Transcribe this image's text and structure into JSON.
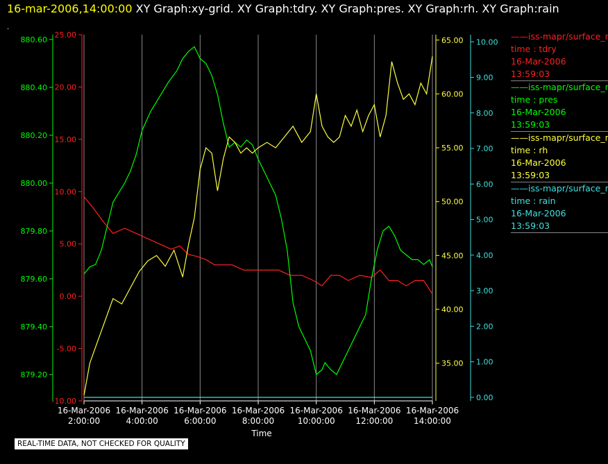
{
  "header": {
    "timestamp": "16-mar-2006,14:00:00",
    "graphs": "XY Graph:xy-grid.  XY Graph:tdry.  XY Graph:pres.  XY Graph:rh.  XY Graph:rain",
    "dot": "."
  },
  "notice": "REAL-TIME DATA, NOT CHECKED FOR QUALITY",
  "legend": [
    {
      "source": "——iss-mapr/surface_m",
      "field": "time : tdry",
      "date": "16-Mar-2006",
      "time": "13:59:03",
      "color": "#ff2020"
    },
    {
      "source": "——iss-mapr/surface_m",
      "field": "time : pres",
      "date": "16-Mar-2006",
      "time": "13:59:03",
      "color": "#00ff00"
    },
    {
      "source": "——iss-mapr/surface_m",
      "field": "time : rh",
      "date": "16-Mar-2006",
      "time": "13:59:03",
      "color": "#ffff40"
    },
    {
      "source": "——iss-mapr/surface_m",
      "field": "time : rain",
      "date": "16-Mar-2006",
      "time": "13:59:03",
      "color": "#40e0e0"
    }
  ],
  "chart_data": {
    "type": "line",
    "xlabel": "Time",
    "x_ticks": [
      [
        "16-Mar-2006",
        "2:00:00"
      ],
      [
        "16-Mar-2006",
        "4:00:00"
      ],
      [
        "16-Mar-2006",
        "6:00:00"
      ],
      [
        "16-Mar-2006",
        "8:00:00"
      ],
      [
        "16-Mar-2006",
        "10:00:00"
      ],
      [
        "16-Mar-2006",
        "12:00:00"
      ],
      [
        "16-Mar-2006",
        "14:00:00"
      ]
    ],
    "x_hours": [
      2,
      4,
      6,
      8,
      10,
      12,
      14
    ],
    "xlim": [
      2,
      14
    ],
    "grid": true,
    "axes": {
      "tdry": {
        "ticks": [
          "25.00",
          "20.00",
          "15.00",
          "10.00",
          "5.00",
          "0.00",
          "-5.00",
          "-10.00"
        ],
        "ylim": [
          -10,
          25
        ],
        "color": "#ff2020"
      },
      "pres": {
        "ticks": [
          "880.60",
          "880.40",
          "880.20",
          "880.00",
          "879.80",
          "879.60",
          "879.40",
          "879.20"
        ],
        "ylim": [
          879.09,
          880.62
        ],
        "color": "#00ff00"
      },
      "rh": {
        "ticks": [
          "65.00",
          "60.00",
          "55.00",
          "50.00",
          "45.00",
          "40.00",
          "35.00"
        ],
        "ylim": [
          31.5,
          65.5
        ],
        "color": "#ffff40"
      },
      "rain": {
        "ticks": [
          "10.00",
          "9.00",
          "8.00",
          "7.00",
          "6.00",
          "5.00",
          "4.00",
          "3.00",
          "2.00",
          "1.00",
          "0.00"
        ],
        "ylim": [
          -0.1,
          10.2
        ],
        "color": "#40e0e0"
      }
    },
    "series": [
      {
        "name": "tdry",
        "axis": "tdry",
        "color": "#ff2020",
        "x": [
          2.0,
          2.3,
          2.7,
          3.0,
          3.4,
          3.8,
          4.2,
          4.6,
          5.0,
          5.3,
          5.6,
          5.9,
          6.2,
          6.5,
          6.8,
          7.1,
          7.5,
          7.9,
          8.3,
          8.7,
          9.1,
          9.5,
          9.9,
          10.2,
          10.5,
          10.8,
          11.1,
          11.5,
          11.9,
          12.2,
          12.5,
          12.8,
          13.1,
          13.4,
          13.7,
          14.0
        ],
        "y": [
          9.5,
          8.5,
          7.0,
          6.0,
          6.5,
          6.0,
          5.5,
          5.0,
          4.5,
          4.8,
          4.0,
          3.8,
          3.5,
          3.0,
          3.0,
          3.0,
          2.5,
          2.5,
          2.5,
          2.5,
          2.0,
          2.0,
          1.5,
          1.0,
          2.0,
          2.0,
          1.5,
          2.0,
          1.8,
          2.5,
          1.5,
          1.5,
          1.0,
          1.5,
          1.5,
          0.2
        ]
      },
      {
        "name": "pres",
        "axis": "pres",
        "color": "#00ff00",
        "x": [
          2.0,
          2.2,
          2.4,
          2.6,
          2.8,
          3.0,
          3.2,
          3.4,
          3.6,
          3.8,
          4.0,
          4.3,
          4.6,
          4.9,
          5.2,
          5.4,
          5.6,
          5.8,
          6.0,
          6.2,
          6.4,
          6.6,
          6.8,
          7.0,
          7.2,
          7.4,
          7.6,
          7.8,
          8.0,
          8.2,
          8.4,
          8.6,
          8.8,
          9.0,
          9.2,
          9.4,
          9.6,
          9.8,
          10.0,
          10.2,
          10.3,
          10.5,
          10.7,
          10.9,
          11.1,
          11.3,
          11.5,
          11.7,
          11.9,
          12.1,
          12.3,
          12.5,
          12.7,
          12.9,
          13.1,
          13.3,
          13.5,
          13.7,
          13.9,
          14.0
        ],
        "y": [
          879.62,
          879.65,
          879.66,
          879.72,
          879.82,
          879.92,
          879.96,
          880.0,
          880.05,
          880.12,
          880.22,
          880.3,
          880.36,
          880.42,
          880.47,
          880.52,
          880.55,
          880.57,
          880.52,
          880.5,
          880.45,
          880.37,
          880.25,
          880.15,
          880.17,
          880.15,
          880.18,
          880.16,
          880.1,
          880.05,
          880.0,
          879.95,
          879.85,
          879.72,
          879.5,
          879.4,
          879.35,
          879.3,
          879.2,
          879.22,
          879.25,
          879.22,
          879.2,
          879.25,
          879.3,
          879.35,
          879.4,
          879.45,
          879.6,
          879.72,
          879.8,
          879.82,
          879.78,
          879.72,
          879.7,
          879.68,
          879.68,
          879.66,
          879.68,
          879.65
        ]
      },
      {
        "name": "rh",
        "axis": "rh",
        "color": "#ffff40",
        "x": [
          2.0,
          2.2,
          2.4,
          2.6,
          2.8,
          3.0,
          3.3,
          3.6,
          3.9,
          4.2,
          4.5,
          4.8,
          5.1,
          5.4,
          5.6,
          5.8,
          6.0,
          6.2,
          6.4,
          6.6,
          6.8,
          7.0,
          7.2,
          7.4,
          7.6,
          7.8,
          8.0,
          8.3,
          8.6,
          8.9,
          9.2,
          9.5,
          9.8,
          10.0,
          10.2,
          10.4,
          10.6,
          10.8,
          11.0,
          11.2,
          11.4,
          11.6,
          11.8,
          12.0,
          12.2,
          12.4,
          12.6,
          12.8,
          13.0,
          13.2,
          13.4,
          13.6,
          13.8,
          14.0
        ],
        "y": [
          32.0,
          35.0,
          36.5,
          38.0,
          39.5,
          41.0,
          40.5,
          42.0,
          43.5,
          44.5,
          45.0,
          44.0,
          45.5,
          43.0,
          46.0,
          48.5,
          53.0,
          55.0,
          54.5,
          51.0,
          54.0,
          56.0,
          55.5,
          54.5,
          55.0,
          54.5,
          55.0,
          55.5,
          55.0,
          56.0,
          57.0,
          55.5,
          56.5,
          60.0,
          57.0,
          56.0,
          55.5,
          56.0,
          58.0,
          57.0,
          58.5,
          56.5,
          58.0,
          59.0,
          56.0,
          58.0,
          63.0,
          61.0,
          59.5,
          60.0,
          59.0,
          61.0,
          60.0,
          63.5
        ]
      },
      {
        "name": "rain",
        "axis": "rain",
        "color": "#40e0e0",
        "x": [
          2.0,
          14.0
        ],
        "y": [
          0.0,
          0.0
        ]
      }
    ]
  }
}
